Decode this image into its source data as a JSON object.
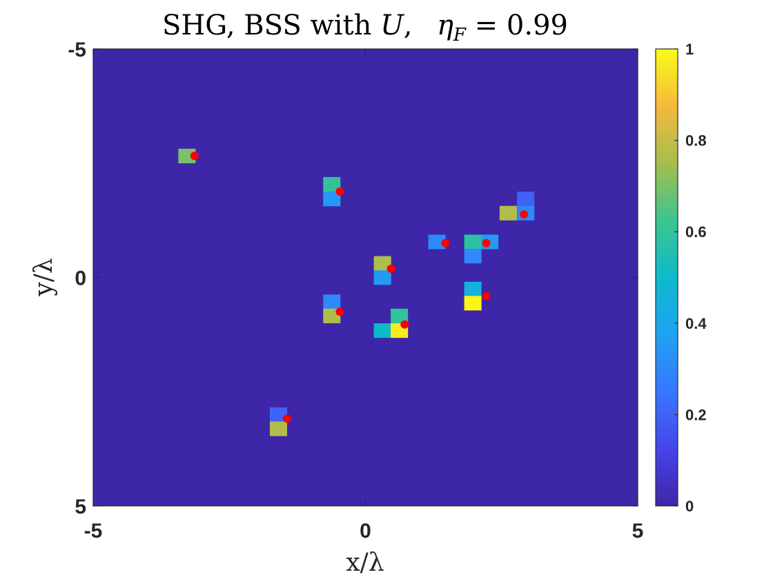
{
  "chart_data": {
    "type": "heatmap",
    "title": "SHG, BSS with U,  η_F = 0.99",
    "title_parts": {
      "prefix": "SHG, BSS with ",
      "U": "U",
      "sep": ",  ",
      "eta": "η",
      "eta_sub": "F",
      "equals_value": " = 0.99"
    },
    "xlabel": "x/λ",
    "ylabel": "y/λ",
    "xlim": [
      -5,
      5
    ],
    "ylim": [
      -5,
      5
    ],
    "y_direction": "reverse",
    "cell_size": 0.3125,
    "xticks": [
      {
        "value": -5,
        "label": "-5"
      },
      {
        "value": 0,
        "label": "0"
      },
      {
        "value": 5,
        "label": "5"
      }
    ],
    "yticks": [
      {
        "value": -5,
        "label": "-5"
      },
      {
        "value": 0,
        "label": "0"
      },
      {
        "value": 5,
        "label": "5"
      }
    ],
    "background_value": 0,
    "colormap": "parula",
    "colorbar": {
      "range": [
        0,
        1
      ],
      "ticks": [
        {
          "value": 0,
          "label": "0"
        },
        {
          "value": 0.2,
          "label": "0.2"
        },
        {
          "value": 0.4,
          "label": "0.4"
        },
        {
          "value": 0.6,
          "label": "0.6"
        },
        {
          "value": 0.8,
          "label": "0.8"
        },
        {
          "value": 1,
          "label": "1"
        }
      ]
    },
    "cells": [
      {
        "x": -3.28,
        "y": -2.66,
        "value": 0.7
      },
      {
        "x": -0.62,
        "y": -2.04,
        "value": 0.6
      },
      {
        "x": -0.62,
        "y": -1.72,
        "value": 0.35
      },
      {
        "x": 2.94,
        "y": -1.72,
        "value": 0.2
      },
      {
        "x": 2.62,
        "y": -1.41,
        "value": 0.77
      },
      {
        "x": 2.94,
        "y": -1.41,
        "value": 0.3
      },
      {
        "x": 1.31,
        "y": -0.78,
        "value": 0.3
      },
      {
        "x": 1.97,
        "y": -0.78,
        "value": 0.58
      },
      {
        "x": 2.28,
        "y": -0.78,
        "value": 0.35
      },
      {
        "x": 1.97,
        "y": -0.47,
        "value": 0.3
      },
      {
        "x": 0.31,
        "y": -0.31,
        "value": 0.77
      },
      {
        "x": 0.31,
        "y": 0.0,
        "value": 0.35
      },
      {
        "x": 1.97,
        "y": 0.25,
        "value": 0.45
      },
      {
        "x": 1.97,
        "y": 0.56,
        "value": 0.99
      },
      {
        "x": -0.62,
        "y": 0.53,
        "value": 0.3
      },
      {
        "x": -0.62,
        "y": 0.84,
        "value": 0.77
      },
      {
        "x": 0.62,
        "y": 0.84,
        "value": 0.6
      },
      {
        "x": 0.31,
        "y": 1.16,
        "value": 0.5
      },
      {
        "x": 0.62,
        "y": 1.16,
        "value": 0.97
      },
      {
        "x": -1.6,
        "y": 3.0,
        "value": 0.2
      },
      {
        "x": -1.6,
        "y": 3.31,
        "value": 0.77
      }
    ],
    "markers": {
      "color": "#ff0000",
      "points": [
        {
          "x": -3.14,
          "y": -2.66
        },
        {
          "x": -0.47,
          "y": -1.88
        },
        {
          "x": 2.91,
          "y": -1.38
        },
        {
          "x": 1.47,
          "y": -0.75
        },
        {
          "x": 2.22,
          "y": -0.75
        },
        {
          "x": 0.47,
          "y": -0.19
        },
        {
          "x": 2.22,
          "y": 0.41
        },
        {
          "x": -0.47,
          "y": 0.75
        },
        {
          "x": 0.72,
          "y": 1.03
        },
        {
          "x": -1.44,
          "y": 3.09
        }
      ]
    }
  }
}
